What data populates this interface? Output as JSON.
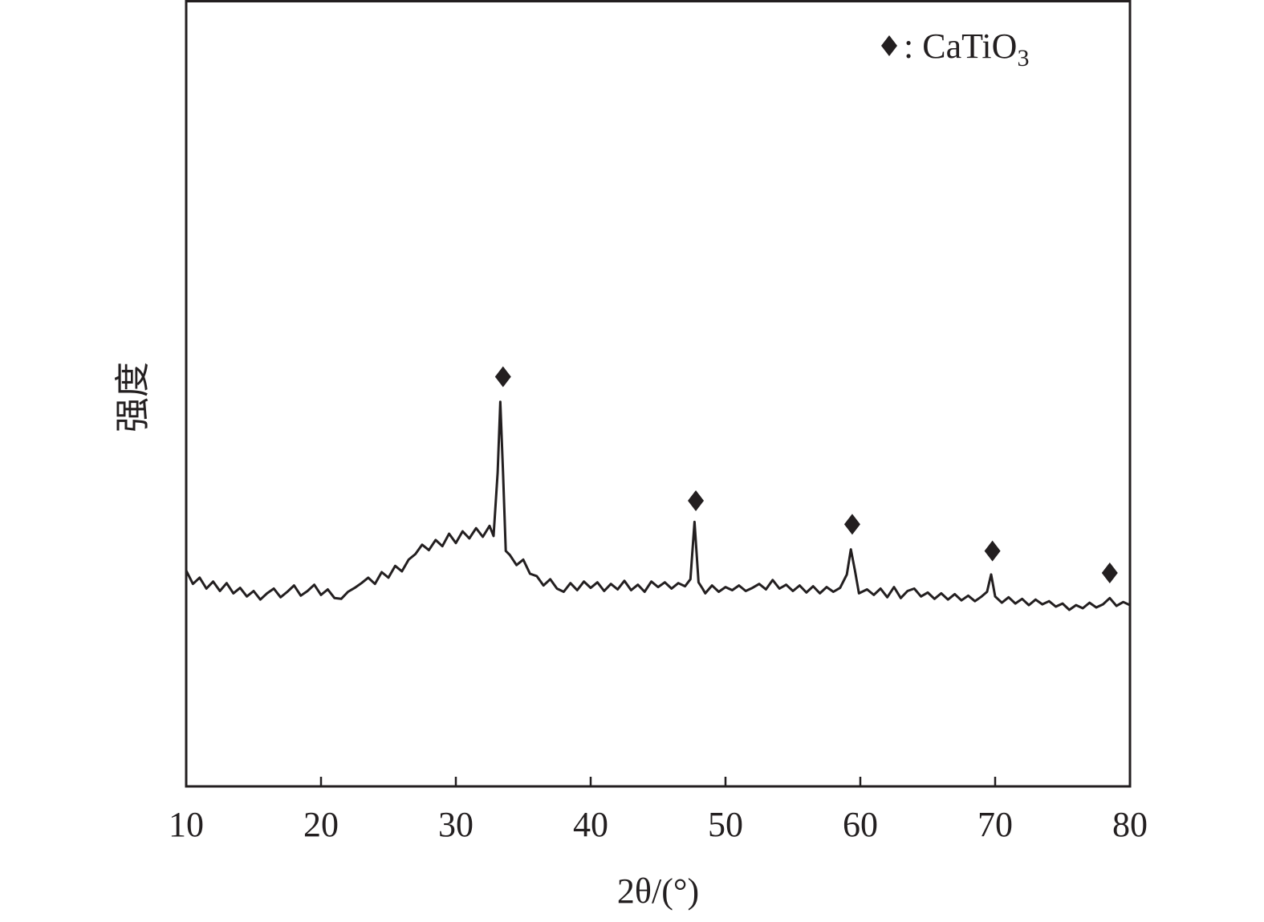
{
  "chart_data": {
    "type": "line",
    "title": "",
    "xlabel": "2θ/(°)",
    "ylabel": "强度",
    "xlim": [
      10,
      80
    ],
    "ylim": [
      0,
      100
    ],
    "xticks": [
      10,
      20,
      30,
      40,
      50,
      60,
      70,
      80
    ],
    "xtick_labels": [
      "10",
      "20",
      "30",
      "40",
      "50",
      "60",
      "70",
      "80"
    ],
    "yticks": [],
    "grid": false,
    "legend": {
      "placement": "top-right",
      "marker": "diamond",
      "label_main": ": CaTiO",
      "label_sub": "3"
    },
    "line_color": "#231f20",
    "series": [
      {
        "points": [
          [
            10,
            27.5
          ],
          [
            10.5,
            25.8
          ],
          [
            11,
            26.6
          ],
          [
            11.5,
            25.2
          ],
          [
            12,
            26.1
          ],
          [
            12.5,
            24.9
          ],
          [
            13,
            25.9
          ],
          [
            13.5,
            24.6
          ],
          [
            14,
            25.3
          ],
          [
            14.5,
            24.2
          ],
          [
            15,
            24.9
          ],
          [
            15.5,
            23.8
          ],
          [
            16,
            24.6
          ],
          [
            16.5,
            25.2
          ],
          [
            17,
            24.1
          ],
          [
            17.5,
            24.8
          ],
          [
            18,
            25.6
          ],
          [
            18.5,
            24.3
          ],
          [
            19,
            24.9
          ],
          [
            19.5,
            25.7
          ],
          [
            20,
            24.4
          ],
          [
            20.5,
            25.1
          ],
          [
            21,
            24.0
          ],
          [
            21.5,
            23.9
          ],
          [
            22,
            24.8
          ],
          [
            22.5,
            25.3
          ],
          [
            23,
            25.9
          ],
          [
            23.5,
            26.6
          ],
          [
            24,
            25.8
          ],
          [
            24.5,
            27.3
          ],
          [
            25,
            26.6
          ],
          [
            25.5,
            28.1
          ],
          [
            26,
            27.4
          ],
          [
            26.5,
            28.9
          ],
          [
            27,
            29.6
          ],
          [
            27.5,
            30.8
          ],
          [
            28,
            30.1
          ],
          [
            28.5,
            31.4
          ],
          [
            29,
            30.6
          ],
          [
            29.5,
            32.2
          ],
          [
            30,
            31.0
          ],
          [
            30.5,
            32.5
          ],
          [
            31,
            31.6
          ],
          [
            31.5,
            32.9
          ],
          [
            32,
            31.8
          ],
          [
            32.5,
            33.2
          ],
          [
            32.8,
            31.9
          ],
          [
            33.1,
            40
          ],
          [
            33.3,
            49.0
          ],
          [
            33.5,
            40
          ],
          [
            33.7,
            30.0
          ],
          [
            34,
            29.5
          ],
          [
            34.5,
            28.2
          ],
          [
            35,
            28.9
          ],
          [
            35.5,
            27.1
          ],
          [
            36,
            26.8
          ],
          [
            36.5,
            25.6
          ],
          [
            37,
            26.4
          ],
          [
            37.5,
            25.2
          ],
          [
            38,
            24.8
          ],
          [
            38.5,
            25.9
          ],
          [
            39,
            25.0
          ],
          [
            39.5,
            26.1
          ],
          [
            40,
            25.3
          ],
          [
            40.5,
            26.0
          ],
          [
            41,
            24.9
          ],
          [
            41.5,
            25.8
          ],
          [
            42,
            25.1
          ],
          [
            42.5,
            26.2
          ],
          [
            43,
            25.0
          ],
          [
            43.5,
            25.7
          ],
          [
            44,
            24.8
          ],
          [
            44.5,
            26.1
          ],
          [
            45,
            25.4
          ],
          [
            45.5,
            26.0
          ],
          [
            46,
            25.2
          ],
          [
            46.5,
            25.9
          ],
          [
            47,
            25.5
          ],
          [
            47.4,
            26.4
          ],
          [
            47.7,
            33.7
          ],
          [
            48.0,
            26
          ],
          [
            48.3,
            25.2
          ],
          [
            48.5,
            24.6
          ],
          [
            49,
            25.6
          ],
          [
            49.5,
            24.8
          ],
          [
            50,
            25.4
          ],
          [
            50.5,
            25.0
          ],
          [
            51,
            25.6
          ],
          [
            51.5,
            24.9
          ],
          [
            52,
            25.3
          ],
          [
            52.5,
            25.8
          ],
          [
            53,
            25.1
          ],
          [
            53.5,
            26.3
          ],
          [
            54,
            25.2
          ],
          [
            54.5,
            25.7
          ],
          [
            55,
            24.9
          ],
          [
            55.5,
            25.6
          ],
          [
            56,
            24.7
          ],
          [
            56.5,
            25.5
          ],
          [
            57,
            24.6
          ],
          [
            57.5,
            25.4
          ],
          [
            58,
            24.8
          ],
          [
            58.5,
            25.3
          ],
          [
            59,
            27
          ],
          [
            59.3,
            30.2
          ],
          [
            59.6,
            27.5
          ],
          [
            59.9,
            24.6
          ],
          [
            60.5,
            25.1
          ],
          [
            61,
            24.4
          ],
          [
            61.5,
            25.2
          ],
          [
            62,
            24.1
          ],
          [
            62.5,
            25.4
          ],
          [
            63,
            24.0
          ],
          [
            63.5,
            24.9
          ],
          [
            64,
            25.2
          ],
          [
            64.5,
            24.2
          ],
          [
            65,
            24.7
          ],
          [
            65.5,
            23.9
          ],
          [
            66,
            24.6
          ],
          [
            66.5,
            23.8
          ],
          [
            67,
            24.5
          ],
          [
            67.5,
            23.7
          ],
          [
            68,
            24.3
          ],
          [
            68.5,
            23.6
          ],
          [
            69,
            24.2
          ],
          [
            69.4,
            24.8
          ],
          [
            69.7,
            27.0
          ],
          [
            70.0,
            24.2
          ],
          [
            70.5,
            23.4
          ],
          [
            71,
            24.1
          ],
          [
            71.5,
            23.3
          ],
          [
            72,
            23.9
          ],
          [
            72.5,
            23.1
          ],
          [
            73,
            23.8
          ],
          [
            73.5,
            23.2
          ],
          [
            74,
            23.6
          ],
          [
            74.5,
            22.9
          ],
          [
            75,
            23.3
          ],
          [
            75.5,
            22.5
          ],
          [
            76,
            23.1
          ],
          [
            76.5,
            22.7
          ],
          [
            77,
            23.4
          ],
          [
            77.5,
            22.8
          ],
          [
            78,
            23.2
          ],
          [
            78.5,
            24.0
          ],
          [
            79,
            23.0
          ],
          [
            79.5,
            23.5
          ],
          [
            80,
            23.1
          ]
        ]
      }
    ],
    "peak_markers": [
      {
        "x": 33.5,
        "y": 52.2,
        "phase": "CaTiO3"
      },
      {
        "x": 47.8,
        "y": 36.4,
        "phase": "CaTiO3"
      },
      {
        "x": 59.4,
        "y": 33.4,
        "phase": "CaTiO3"
      },
      {
        "x": 69.8,
        "y": 30.0,
        "phase": "CaTiO3"
      },
      {
        "x": 78.5,
        "y": 27.2,
        "phase": "CaTiO3"
      }
    ]
  }
}
